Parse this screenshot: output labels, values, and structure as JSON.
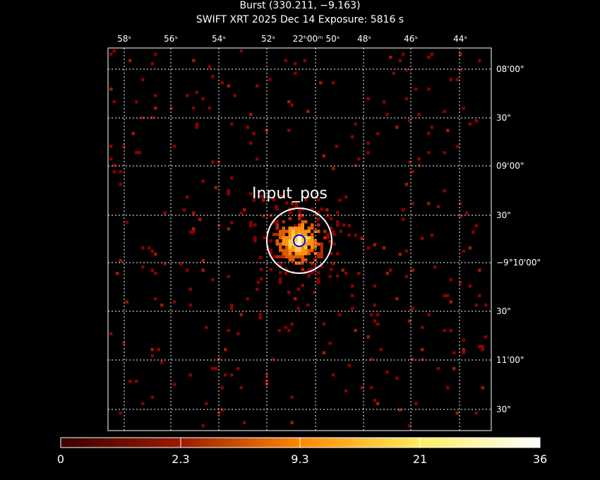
{
  "title": "Burst (330.211, −9.163)",
  "subtitle": "SWIFT XRT   2025 Dec 14    Exposure: 5816 s",
  "ra_labels": [
    "58ˢ",
    "56ˢ",
    "54ˢ",
    "52ˢ",
    "22ʰ00ᵐ 50ˢ",
    "48ˢ",
    "46ˢ",
    "44ˢ"
  ],
  "dec_labels": [
    "08'00\"",
    "30\"",
    "09'00\"",
    "30\"",
    "−9°10'00\"",
    "30\"",
    "11'00\"",
    "30\""
  ],
  "region_label": "Input_pos",
  "colorbar": {
    "ticks": [
      "0",
      "2.3",
      "9.3",
      "21",
      "36"
    ],
    "colors": [
      "#000000",
      "#8b0000",
      "#ff8000",
      "#ffff60",
      "#ffffff"
    ]
  },
  "colors": {
    "region_outer": "#ffffff",
    "region_inner": "#0000ff",
    "grid": "#ffffff"
  }
}
